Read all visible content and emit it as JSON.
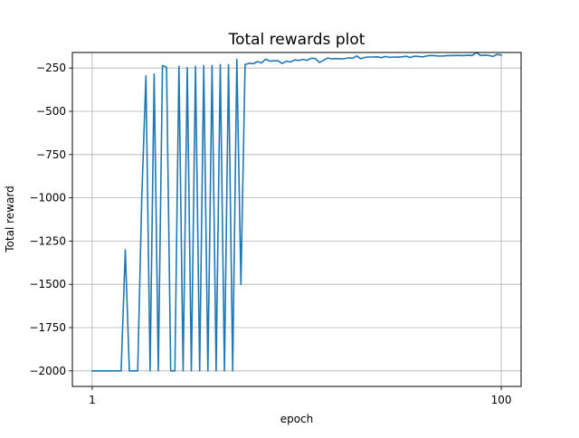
{
  "chart_data": {
    "type": "line",
    "title": "Total rewards plot",
    "xlabel": "epoch",
    "ylabel": "Total reward",
    "x_ticks": [
      "1",
      "100"
    ],
    "x_tick_values": [
      1,
      100
    ],
    "y_ticks": [
      "−250",
      "−500",
      "−750",
      "−1000",
      "−1250",
      "−1500",
      "−1750",
      "−2000"
    ],
    "y_tick_values": [
      -250,
      -500,
      -750,
      -1000,
      -1250,
      -1500,
      -1750,
      -2000
    ],
    "xlim": [
      -3.8,
      104.8
    ],
    "ylim": [
      -2090,
      -160
    ],
    "grid": true,
    "line_color": "#1f77b4",
    "series": [
      {
        "name": "",
        "x": [
          1,
          2,
          3,
          4,
          5,
          6,
          7,
          8,
          9,
          10,
          11,
          12,
          13,
          14,
          15,
          16,
          17,
          18,
          19,
          20,
          21,
          22,
          23,
          24,
          25,
          26,
          27,
          28,
          29,
          30,
          31,
          32,
          33,
          34,
          35,
          36,
          37,
          38,
          39,
          40,
          41,
          42,
          43,
          44,
          45,
          46,
          47,
          48,
          49,
          50,
          51,
          52,
          53,
          54,
          55,
          56,
          57,
          58,
          59,
          60,
          61,
          62,
          63,
          64,
          65,
          66,
          67,
          68,
          69,
          70,
          71,
          72,
          73,
          74,
          75,
          76,
          77,
          78,
          79,
          80,
          81,
          82,
          83,
          84,
          85,
          86,
          87,
          88,
          89,
          90,
          91,
          92,
          93,
          94,
          95,
          96,
          97,
          98,
          99,
          100
        ],
        "values": [
          -2000,
          -2000,
          -2000,
          -2000,
          -2000,
          -2000,
          -2000,
          -2000,
          -1300,
          -2000,
          -2000,
          -2000,
          -1000,
          -295,
          -2000,
          -285,
          -2000,
          -235,
          -245,
          -2000,
          -2000,
          -240,
          -2000,
          -248,
          -2000,
          -240,
          -2000,
          -235,
          -2000,
          -235,
          -2000,
          -230,
          -2000,
          -230,
          -2000,
          -200,
          -1500,
          -230,
          -222,
          -225,
          -213,
          -220,
          -198,
          -210,
          -208,
          -208,
          -224,
          -210,
          -215,
          -203,
          -206,
          -200,
          -205,
          -193,
          -195,
          -218,
          -205,
          -192,
          -197,
          -195,
          -197,
          -196,
          -191,
          -193,
          -180,
          -196,
          -188,
          -186,
          -186,
          -185,
          -190,
          -183,
          -188,
          -186,
          -187,
          -185,
          -182,
          -189,
          -181,
          -183,
          -185,
          -180,
          -177,
          -179,
          -181,
          -180,
          -178,
          -178,
          -177,
          -177,
          -178,
          -176,
          -177,
          -160,
          -177,
          -175,
          -177,
          -183,
          -171,
          -175
        ]
      }
    ]
  }
}
